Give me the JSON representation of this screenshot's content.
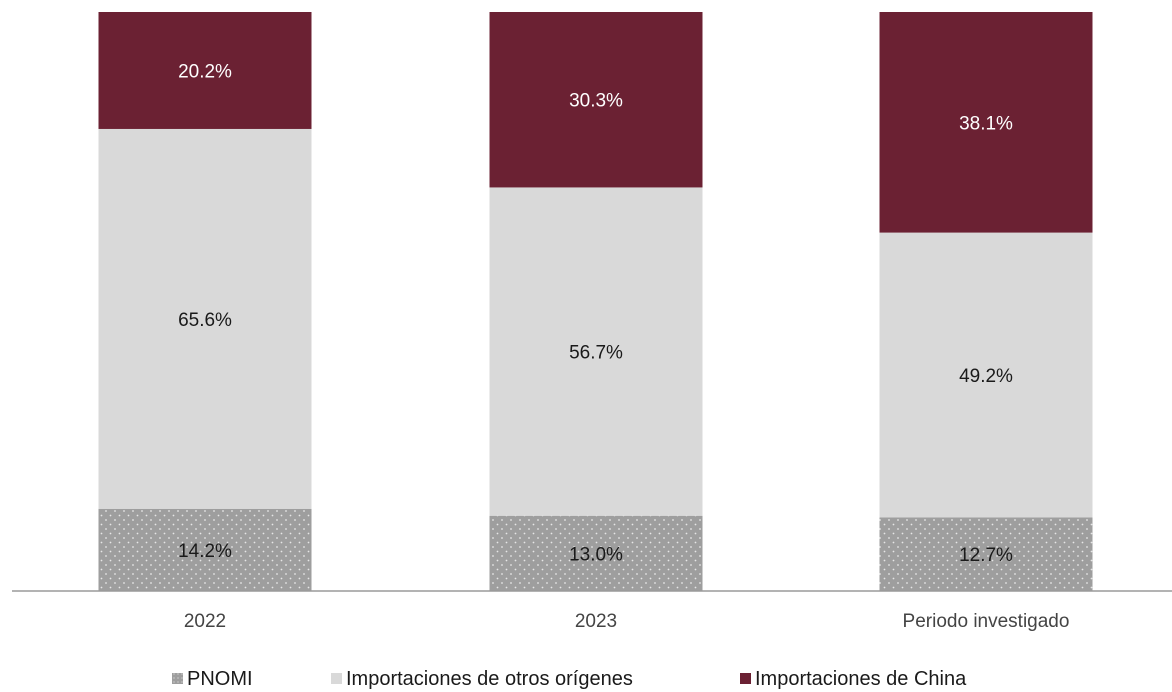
{
  "chart_data": {
    "type": "bar",
    "stacked": true,
    "categories": [
      "2022",
      "2023",
      "Periodo investigado"
    ],
    "series": [
      {
        "name": "PNOMI",
        "values": [
          14.2,
          13.0,
          12.7
        ],
        "labels": [
          "14.2%",
          "13.0%",
          "12.7%"
        ],
        "color": "#9e9e9e"
      },
      {
        "name": "Importaciones de otros orígenes",
        "values": [
          65.6,
          56.7,
          49.2
        ],
        "labels": [
          "65.6%",
          "56.7%",
          "49.2%"
        ],
        "color": "#d9d9d9"
      },
      {
        "name": "Importaciones de China",
        "values": [
          20.2,
          30.3,
          38.1
        ],
        "labels": [
          "20.2%",
          "30.3%",
          "38.1%"
        ],
        "color": "#6b2133"
      }
    ],
    "ylim": [
      0,
      100
    ],
    "unit": "%",
    "legend_position": "bottom",
    "grid": false
  }
}
